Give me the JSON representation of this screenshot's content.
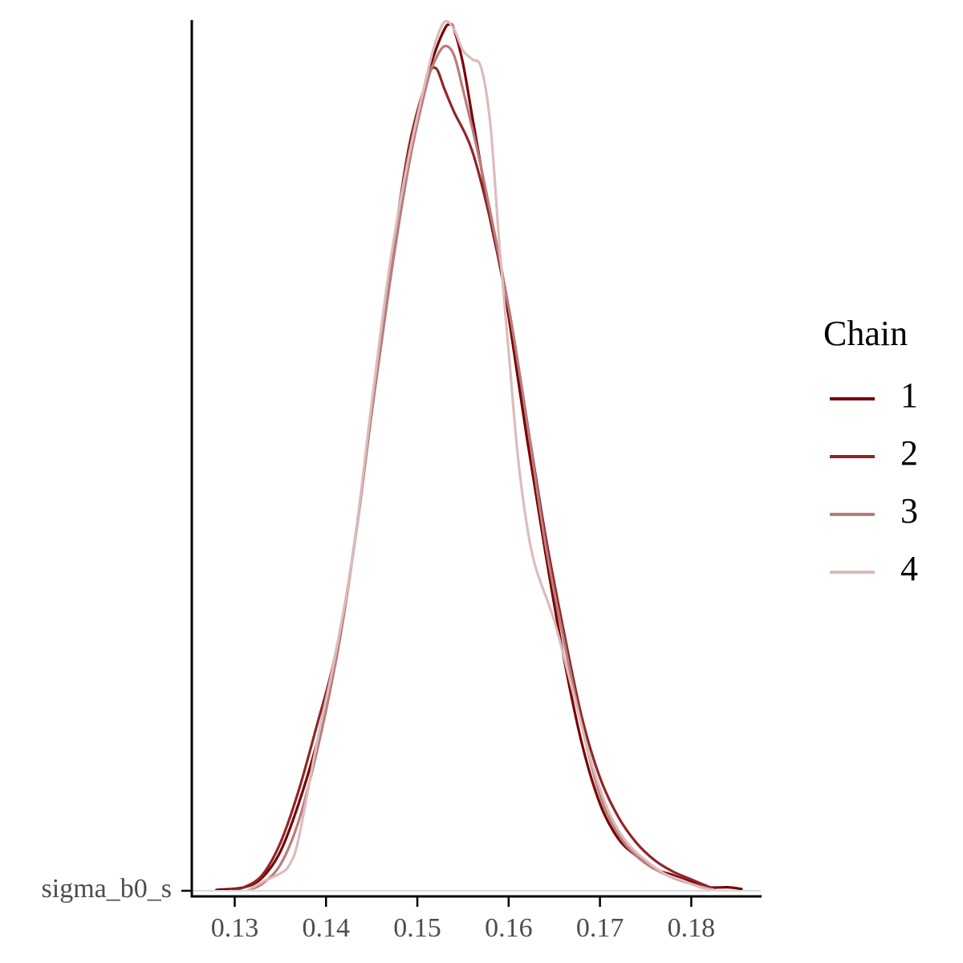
{
  "chart_data": {
    "type": "line",
    "title": "",
    "xlabel": "",
    "ylabel": "",
    "y_category": "sigma_b0_s",
    "xlim": [
      0.1253,
      0.1877
    ],
    "x_ticks": [
      0.13,
      0.14,
      0.15,
      0.16,
      0.17,
      0.18
    ],
    "x_tick_labels": [
      "0.13",
      "0.14",
      "0.15",
      "0.16",
      "0.17",
      "0.18"
    ],
    "ylim": [
      0,
      1.0
    ],
    "grid": false,
    "legend": {
      "title": "Chain",
      "position": "right"
    },
    "series": [
      {
        "name": "1",
        "color": "#7a0000",
        "points": [
          [
            0.128,
            0.001
          ],
          [
            0.131,
            0.004
          ],
          [
            0.133,
            0.015
          ],
          [
            0.135,
            0.045
          ],
          [
            0.137,
            0.1
          ],
          [
            0.139,
            0.17
          ],
          [
            0.141,
            0.26
          ],
          [
            0.143,
            0.39
          ],
          [
            0.145,
            0.55
          ],
          [
            0.147,
            0.7
          ],
          [
            0.149,
            0.83
          ],
          [
            0.151,
            0.93
          ],
          [
            0.152,
            0.965
          ],
          [
            0.153,
            0.99
          ],
          [
            0.1535,
            0.995
          ],
          [
            0.154,
            0.99
          ],
          [
            0.155,
            0.95
          ],
          [
            0.156,
            0.89
          ],
          [
            0.157,
            0.83
          ],
          [
            0.158,
            0.77
          ],
          [
            0.159,
            0.72
          ],
          [
            0.16,
            0.66
          ],
          [
            0.162,
            0.52
          ],
          [
            0.164,
            0.39
          ],
          [
            0.166,
            0.27
          ],
          [
            0.168,
            0.17
          ],
          [
            0.17,
            0.1
          ],
          [
            0.172,
            0.06
          ],
          [
            0.174,
            0.04
          ],
          [
            0.176,
            0.025
          ],
          [
            0.178,
            0.018
          ],
          [
            0.18,
            0.01
          ],
          [
            0.182,
            0.004
          ],
          [
            0.184,
            0.004
          ],
          [
            0.1855,
            0.002
          ]
        ]
      },
      {
        "name": "2",
        "color": "#8f2727",
        "points": [
          [
            0.1295,
            0.001
          ],
          [
            0.131,
            0.004
          ],
          [
            0.133,
            0.018
          ],
          [
            0.135,
            0.055
          ],
          [
            0.137,
            0.115
          ],
          [
            0.139,
            0.19
          ],
          [
            0.141,
            0.27
          ],
          [
            0.143,
            0.39
          ],
          [
            0.145,
            0.55
          ],
          [
            0.147,
            0.71
          ],
          [
            0.149,
            0.85
          ],
          [
            0.151,
            0.93
          ],
          [
            0.152,
            0.945
          ],
          [
            0.153,
            0.92
          ],
          [
            0.154,
            0.895
          ],
          [
            0.156,
            0.85
          ],
          [
            0.158,
            0.77
          ],
          [
            0.16,
            0.67
          ],
          [
            0.162,
            0.54
          ],
          [
            0.164,
            0.41
          ],
          [
            0.166,
            0.3
          ],
          [
            0.168,
            0.2
          ],
          [
            0.17,
            0.13
          ],
          [
            0.172,
            0.085
          ],
          [
            0.174,
            0.055
          ],
          [
            0.176,
            0.035
          ],
          [
            0.178,
            0.022
          ],
          [
            0.18,
            0.013
          ],
          [
            0.1825,
            0.002
          ]
        ]
      },
      {
        "name": "3",
        "color": "#b97c7c",
        "points": [
          [
            0.1315,
            0.001
          ],
          [
            0.133,
            0.008
          ],
          [
            0.135,
            0.03
          ],
          [
            0.137,
            0.08
          ],
          [
            0.139,
            0.16
          ],
          [
            0.141,
            0.26
          ],
          [
            0.143,
            0.39
          ],
          [
            0.145,
            0.55
          ],
          [
            0.147,
            0.7
          ],
          [
            0.149,
            0.83
          ],
          [
            0.151,
            0.925
          ],
          [
            0.152,
            0.955
          ],
          [
            0.153,
            0.97
          ],
          [
            0.154,
            0.96
          ],
          [
            0.155,
            0.92
          ],
          [
            0.157,
            0.83
          ],
          [
            0.16,
            0.67
          ],
          [
            0.162,
            0.54
          ],
          [
            0.164,
            0.4
          ],
          [
            0.166,
            0.29
          ],
          [
            0.168,
            0.19
          ],
          [
            0.17,
            0.11
          ],
          [
            0.172,
            0.065
          ],
          [
            0.174,
            0.04
          ],
          [
            0.176,
            0.025
          ],
          [
            0.178,
            0.015
          ],
          [
            0.18,
            0.008
          ],
          [
            0.182,
            0.002
          ]
        ]
      },
      {
        "name": "4",
        "color": "#dcbcbc",
        "points": [
          [
            0.1315,
            0.001
          ],
          [
            0.133,
            0.01
          ],
          [
            0.135,
            0.02
          ],
          [
            0.136,
            0.03
          ],
          [
            0.137,
            0.06
          ],
          [
            0.139,
            0.17
          ],
          [
            0.141,
            0.27
          ],
          [
            0.143,
            0.39
          ],
          [
            0.145,
            0.56
          ],
          [
            0.147,
            0.72
          ],
          [
            0.149,
            0.84
          ],
          [
            0.151,
            0.935
          ],
          [
            0.152,
            0.975
          ],
          [
            0.153,
            0.998
          ],
          [
            0.154,
            0.99
          ],
          [
            0.155,
            0.965
          ],
          [
            0.156,
            0.955
          ],
          [
            0.157,
            0.945
          ],
          [
            0.158,
            0.88
          ],
          [
            0.159,
            0.74
          ],
          [
            0.16,
            0.62
          ],
          [
            0.161,
            0.5
          ],
          [
            0.162,
            0.42
          ],
          [
            0.163,
            0.37
          ],
          [
            0.165,
            0.31
          ],
          [
            0.167,
            0.23
          ],
          [
            0.169,
            0.15
          ],
          [
            0.171,
            0.09
          ],
          [
            0.173,
            0.055
          ],
          [
            0.175,
            0.035
          ],
          [
            0.177,
            0.02
          ],
          [
            0.179,
            0.012
          ],
          [
            0.181,
            0.004
          ],
          [
            0.1825,
            0.001
          ]
        ]
      }
    ]
  }
}
